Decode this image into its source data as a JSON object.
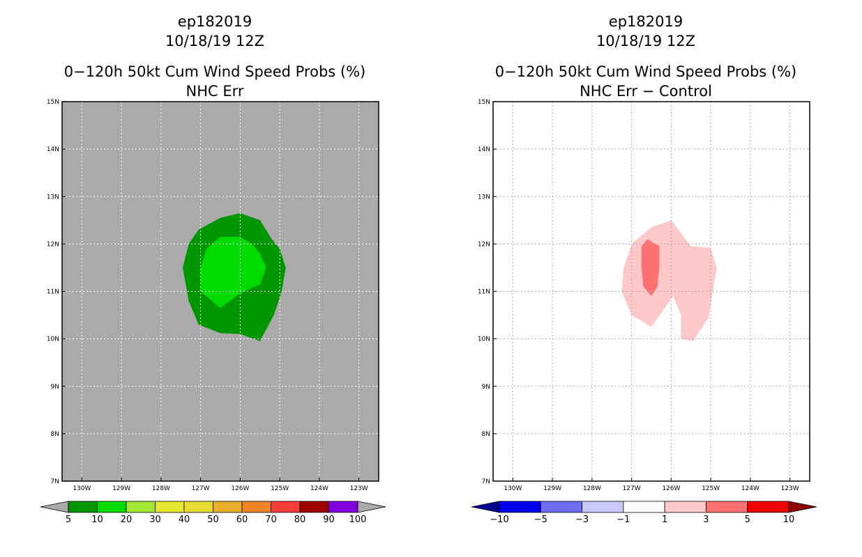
{
  "chart_data": [
    {
      "type": "heatmap",
      "title_lines": [
        "ep182019",
        "10/18/19 12Z",
        "0−120h 50kt Cum Wind Speed Probs (%)",
        "NHC Err"
      ],
      "xlabel": "",
      "ylabel": "",
      "xlim": [
        -130.5,
        -122.5
      ],
      "ylim": [
        7,
        15
      ],
      "x_ticks": [
        -130,
        -129,
        -128,
        -127,
        -126,
        -125,
        -124,
        -123
      ],
      "x_tick_labels": [
        "130W",
        "129W",
        "128W",
        "127W",
        "126W",
        "125W",
        "124W",
        "123W"
      ],
      "y_ticks": [
        7,
        8,
        9,
        10,
        11,
        12,
        13,
        14,
        15
      ],
      "y_tick_labels": [
        "7N",
        "8N",
        "9N",
        "10N",
        "11N",
        "12N",
        "13N",
        "14N",
        "15N"
      ],
      "grid": true,
      "background_color": "#aaaaaa",
      "grid_color": "#ffffff",
      "contours": [
        {
          "level": "5-10",
          "color": "#009600",
          "lonlat": [
            [
              -126.0,
              12.65
            ],
            [
              -125.5,
              12.5
            ],
            [
              -125.2,
              12.1
            ],
            [
              -125.0,
              11.9
            ],
            [
              -124.85,
              11.5
            ],
            [
              -124.95,
              11.0
            ],
            [
              -125.15,
              10.5
            ],
            [
              -125.5,
              9.95
            ],
            [
              -126.0,
              10.1
            ],
            [
              -126.5,
              10.12
            ],
            [
              -127.05,
              10.3
            ],
            [
              -127.3,
              10.8
            ],
            [
              -127.45,
              11.5
            ],
            [
              -127.3,
              12.0
            ],
            [
              -127.05,
              12.3
            ],
            [
              -126.5,
              12.55
            ]
          ]
        },
        {
          "level": "10-20",
          "color": "#00dc00",
          "lonlat": [
            [
              -126.5,
              12.15
            ],
            [
              -126.0,
              12.15
            ],
            [
              -125.7,
              12.0
            ],
            [
              -125.5,
              11.8
            ],
            [
              -125.35,
              11.5
            ],
            [
              -125.5,
              11.15
            ],
            [
              -125.9,
              11.0
            ],
            [
              -126.1,
              10.9
            ],
            [
              -126.5,
              10.65
            ],
            [
              -127.0,
              11.0
            ],
            [
              -127.0,
              11.5
            ],
            [
              -126.85,
              11.9
            ]
          ]
        }
      ],
      "colorbar": {
        "labels": [
          "5",
          "10",
          "20",
          "30",
          "40",
          "50",
          "60",
          "70",
          "80",
          "90",
          "100"
        ],
        "colors": [
          "#009600",
          "#00dc00",
          "#a0e632",
          "#e6e632",
          "#e6dc32",
          "#e6af2d",
          "#f08228",
          "#fa3c3c",
          "#a00000",
          "#8200dc"
        ],
        "end_color": "#aaaaaa"
      }
    },
    {
      "type": "heatmap",
      "title_lines": [
        "ep182019",
        "10/18/19 12Z",
        "0−120h 50kt Cum Wind Speed Probs (%)",
        "NHC Err − Control"
      ],
      "xlabel": "",
      "ylabel": "",
      "xlim": [
        -130.5,
        -122.5
      ],
      "ylim": [
        7,
        15
      ],
      "x_ticks": [
        -130,
        -129,
        -128,
        -127,
        -126,
        -125,
        -124,
        -123
      ],
      "x_tick_labels": [
        "130W",
        "129W",
        "128W",
        "127W",
        "126W",
        "125W",
        "124W",
        "123W"
      ],
      "y_ticks": [
        7,
        8,
        9,
        10,
        11,
        12,
        13,
        14,
        15
      ],
      "y_tick_labels": [
        "7N",
        "8N",
        "9N",
        "10N",
        "11N",
        "12N",
        "13N",
        "14N",
        "15N"
      ],
      "grid": true,
      "background_color": "#ffffff",
      "grid_color": "#aaaaaa",
      "contours": [
        {
          "level": "1-3",
          "color": "#ffc8c8",
          "lonlat": [
            [
              -126.5,
              12.35
            ],
            [
              -126.0,
              12.5
            ],
            [
              -125.5,
              11.95
            ],
            [
              -125.0,
              11.92
            ],
            [
              -124.85,
              11.5
            ],
            [
              -124.95,
              11.0
            ],
            [
              -125.05,
              10.45
            ],
            [
              -125.45,
              9.95
            ],
            [
              -125.75,
              10.0
            ],
            [
              -125.75,
              10.5
            ],
            [
              -125.95,
              10.9
            ],
            [
              -126.5,
              10.25
            ],
            [
              -127.0,
              10.5
            ],
            [
              -127.25,
              11.0
            ],
            [
              -127.2,
              11.5
            ],
            [
              -127.0,
              12.0
            ]
          ]
        },
        {
          "level": "3-5",
          "color": "#ff7070",
          "lonlat": [
            [
              -126.6,
              12.1
            ],
            [
              -126.3,
              11.95
            ],
            [
              -126.3,
              11.5
            ],
            [
              -126.35,
              11.1
            ],
            [
              -126.5,
              10.9
            ],
            [
              -126.7,
              11.1
            ],
            [
              -126.75,
              11.5
            ],
            [
              -126.75,
              11.95
            ]
          ]
        }
      ],
      "colorbar": {
        "labels": [
          "−10",
          "−5",
          "−3",
          "−1",
          "1",
          "3",
          "5",
          "10"
        ],
        "colors": [
          "#0000f0",
          "#6e6ef5",
          "#c8c8ff",
          "#ffffff",
          "#ffc8c8",
          "#ff7070",
          "#f00000"
        ],
        "left_end_color": "#00008c",
        "right_end_color": "#8c0000"
      }
    }
  ]
}
